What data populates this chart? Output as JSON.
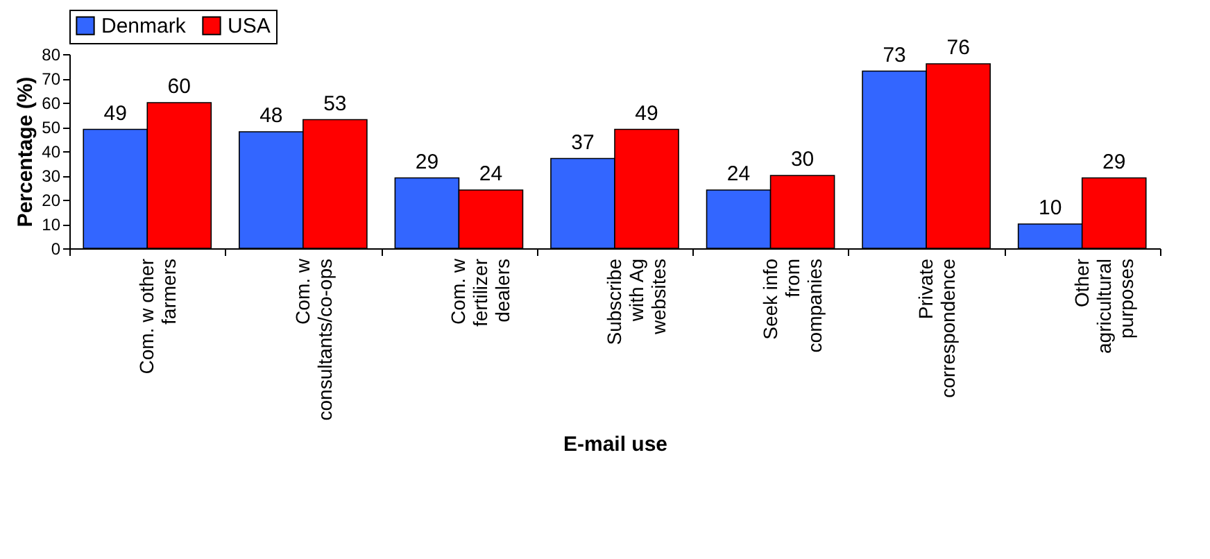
{
  "chart_data": {
    "type": "bar",
    "xlabel": "E-mail use",
    "ylabel": "Percentage (%)",
    "categories": [
      "Com. w other farmers",
      "Com. w consultants/co-ops",
      "Com. w fertilizer dealers",
      "Subscribe with Ag websites",
      "Seek info from companies",
      "Private correspondence",
      "Other agricultural purposes"
    ],
    "series": [
      {
        "name": "Denmark",
        "color": "#3366ff",
        "values": [
          49,
          48,
          29,
          37,
          24,
          73,
          10
        ]
      },
      {
        "name": "USA",
        "color": "#ff0000",
        "values": [
          60,
          53,
          24,
          49,
          30,
          76,
          29
        ]
      }
    ],
    "ylim": [
      0,
      80
    ],
    "yticks": [
      0,
      10,
      20,
      30,
      40,
      50,
      60,
      70,
      80
    ],
    "data_labels": true,
    "legend": "top",
    "grid": false
  }
}
